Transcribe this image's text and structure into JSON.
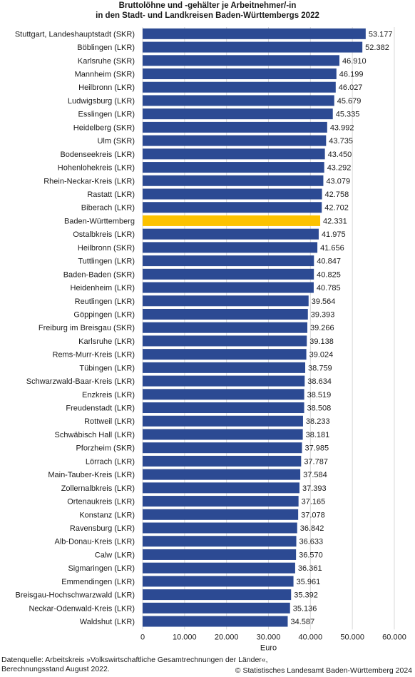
{
  "chart_data": {
    "type": "bar",
    "orientation": "horizontal",
    "title": "Bruttolöhne und -gehälter je Arbeitnehmer/-in\nin den Stadt- und Landkreisen Baden-Württembergs 2022",
    "xlabel": "Euro",
    "ylabel": "",
    "xlim": [
      0,
      60000
    ],
    "x_ticks": [
      "0",
      "10.000",
      "20.000",
      "30.000",
      "40.000",
      "50.000",
      "60.000"
    ],
    "x_tick_values": [
      0,
      10000,
      20000,
      30000,
      40000,
      50000,
      60000
    ],
    "grid": true,
    "colors": {
      "default": "#2c4a93",
      "highlight": "#fcc200",
      "grid": "#d9d9d9"
    },
    "highlight_category": "Baden-Württemberg",
    "categories": [
      "Stuttgart, Landeshauptstadt (SKR)",
      "Böblingen (LKR)",
      "Karlsruhe (SKR)",
      "Mannheim (SKR)",
      "Heilbronn (LKR)",
      "Ludwigsburg (LKR)",
      "Esslingen (LKR)",
      "Heidelberg (SKR)",
      "Ulm (SKR)",
      "Bodenseekreis (LKR)",
      "Hohenlohekreis (LKR)",
      "Rhein-Neckar-Kreis (LKR)",
      "Rastatt (LKR)",
      "Biberach (LKR)",
      "Baden-Württemberg",
      "Ostalbkreis (LKR)",
      "Heilbronn (SKR)",
      "Tuttlingen (LKR)",
      "Baden-Baden (SKR)",
      "Heidenheim (LKR)",
      "Reutlingen (LKR)",
      "Göppingen (LKR)",
      "Freiburg im Breisgau (SKR)",
      "Karlsruhe (LKR)",
      "Rems-Murr-Kreis (LKR)",
      "Tübingen (LKR)",
      "Schwarzwald-Baar-Kreis (LKR)",
      "Enzkreis (LKR)",
      "Freudenstadt (LKR)",
      "Rottweil (LKR)",
      "Schwäbisch Hall (LKR)",
      "Pforzheim (SKR)",
      "Lörrach (LKR)",
      "Main-Tauber-Kreis (LKR)",
      "Zollernalbkreis (LKR)",
      "Ortenaukreis (LKR)",
      "Konstanz (LKR)",
      "Ravensburg (LKR)",
      "Alb-Donau-Kreis (LKR)",
      "Calw (LKR)",
      "Sigmaringen (LKR)",
      "Emmendingen (LKR)",
      "Breisgau-Hochschwarzwald (LKR)",
      "Neckar-Odenwald-Kreis (LKR)",
      "Waldshut (LKR)"
    ],
    "values": [
      53177,
      52382,
      46910,
      46199,
      46027,
      45679,
      45335,
      43992,
      43735,
      43450,
      43292,
      43079,
      42758,
      42702,
      42331,
      41975,
      41656,
      40847,
      40825,
      40785,
      39564,
      39393,
      39266,
      39138,
      39024,
      38759,
      38634,
      38519,
      38508,
      38233,
      38181,
      37985,
      37787,
      37584,
      37393,
      37165,
      37078,
      36842,
      36633,
      36570,
      36361,
      35961,
      35392,
      35136,
      34587
    ],
    "value_labels": [
      "53.177",
      "52.382",
      "46.910",
      "46.199",
      "46.027",
      "45.679",
      "45.335",
      "43.992",
      "43.735",
      "43.450",
      "43.292",
      "43.079",
      "42.758",
      "42.702",
      "42.331",
      "41.975",
      "41.656",
      "40.847",
      "40.825",
      "40.785",
      "39.564",
      "39.393",
      "39.266",
      "39.138",
      "39.024",
      "38.759",
      "38.634",
      "38.519",
      "38.508",
      "38.233",
      "38.181",
      "37.985",
      "37.787",
      "37.584",
      "37.393",
      "37.165",
      "37.078",
      "36.842",
      "36.633",
      "36.570",
      "36.361",
      "35.961",
      "35.392",
      "35.136",
      "34.587"
    ]
  },
  "footer": {
    "source_line1": "Datenquelle: Arbeitskreis »Volkswirtschaftliche Gesamtrechnungen der Länder«,",
    "source_line2": "Berechnungsstand August 2022.",
    "copyright": "© Statistisches Landesamt Baden-Württemberg 2024"
  }
}
